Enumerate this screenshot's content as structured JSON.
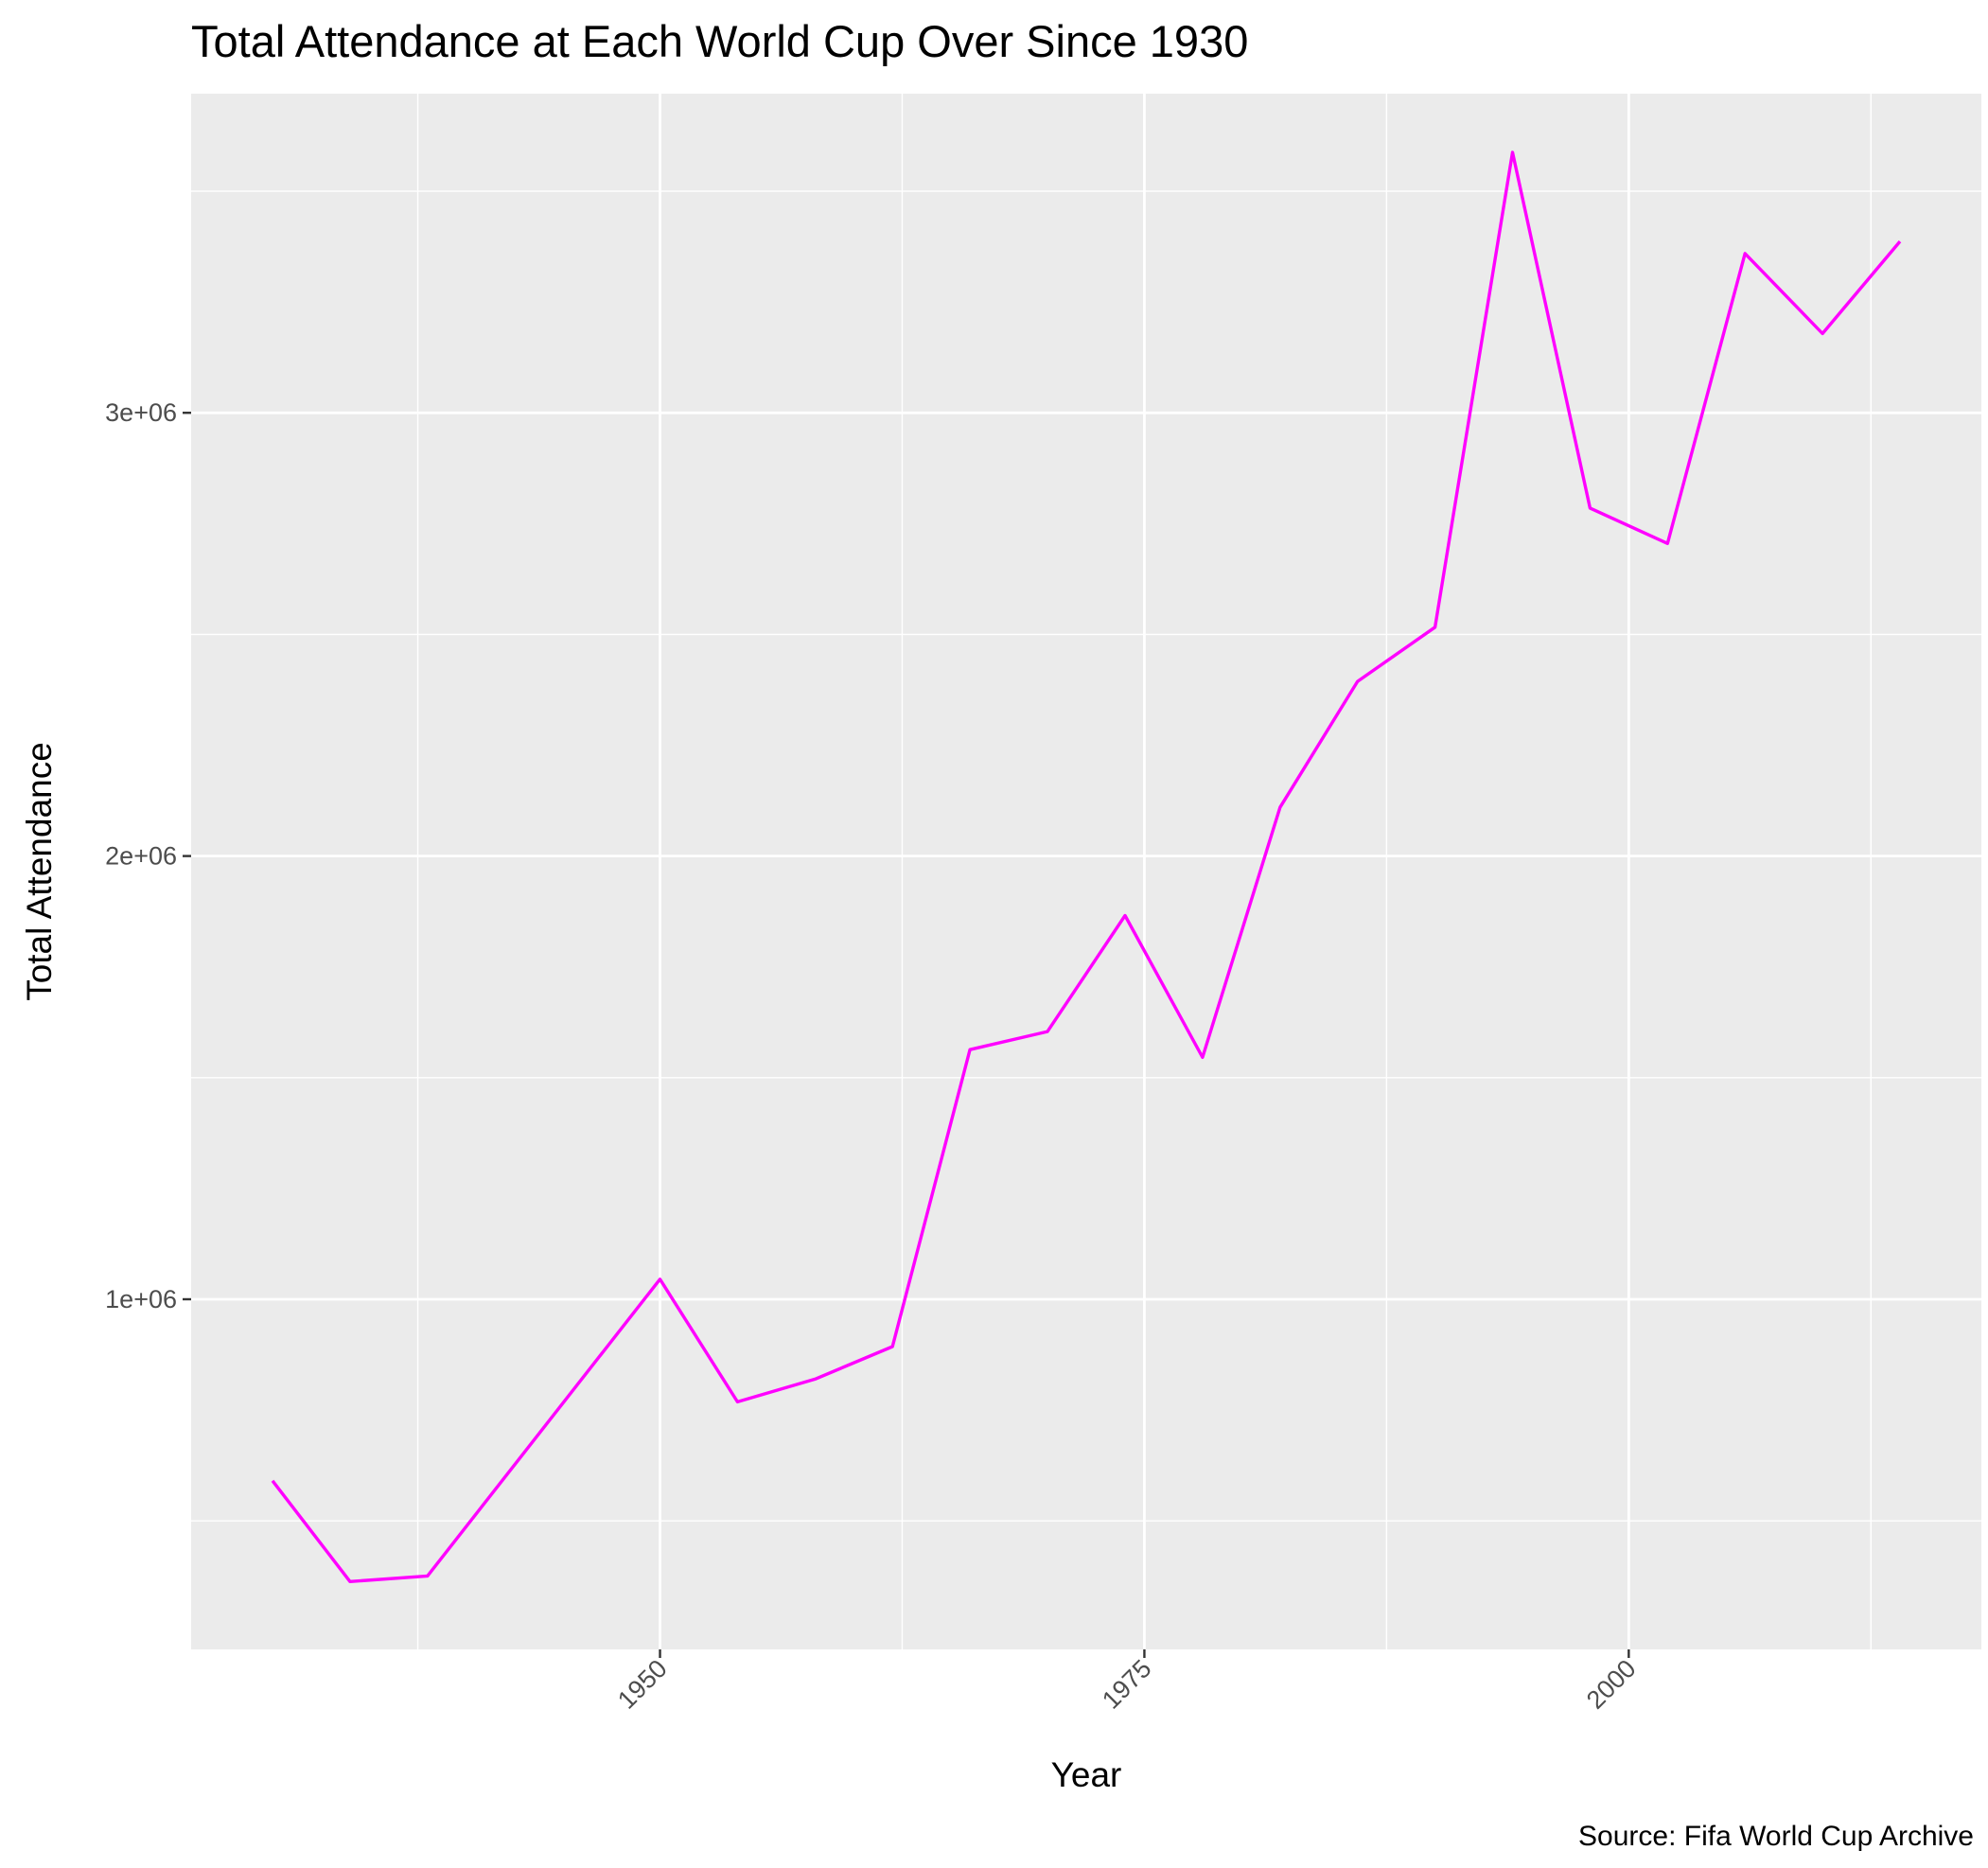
{
  "chart_data": {
    "type": "line",
    "title": "Total Attendance at Each World Cup Over Since 1930",
    "xlabel": "Year",
    "ylabel": "Total Attendance",
    "caption": "Source: Fifa World Cup Archive",
    "x_ticks": [
      1950,
      1975,
      2000
    ],
    "x_tick_labels": [
      "1950",
      "1975",
      "2000"
    ],
    "y_ticks": [
      1000000,
      2000000,
      3000000
    ],
    "y_tick_labels": [
      "1e+06",
      "2e+06",
      "3e+06"
    ],
    "xlim": [
      1925.8,
      2018.2
    ],
    "ylim": [
      210000,
      3720000
    ],
    "grid": true,
    "series": [
      {
        "color": "#ff00ff",
        "x": [
          1930,
          1934,
          1938,
          1950,
          1954,
          1958,
          1962,
          1966,
          1970,
          1974,
          1978,
          1982,
          1986,
          1990,
          1994,
          1998,
          2002,
          2006,
          2010,
          2014
        ],
        "values": [
          590549,
          363000,
          375700,
          1045246,
          768607,
          819810,
          893172,
          1563135,
          1603975,
          1865753,
          1545791,
          2109723,
          2394031,
          2516215,
          3587538,
          2785100,
          2705197,
          3359439,
          3178856,
          3386810
        ]
      }
    ]
  }
}
